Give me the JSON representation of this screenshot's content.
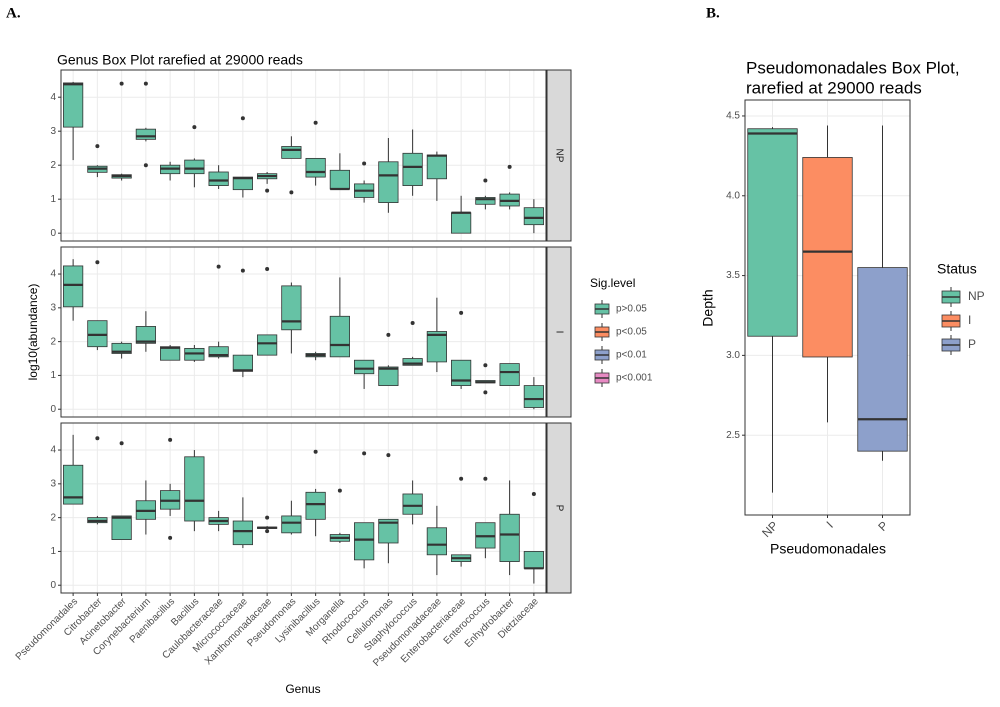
{
  "chart_data": [
    {
      "type": "box",
      "panel_label": "A.",
      "title": "Genus Box Plot rarefied at 29000 reads",
      "x_label": "Genus",
      "y_label": "log10(abundance)",
      "categories": [
        "Pseudomonadales",
        "Citrobacter",
        "Acinetobacter",
        "Corynebacterium",
        "Paenibacillus",
        "Bacillus",
        "Caulobacteraceae",
        "Micrococcaceae",
        "Xanthomonadaceae",
        "Pseudomonas",
        "Lysinibacillus",
        "Morganella",
        "Rhodococcus",
        "Cellulomonas",
        "Staphylococcus",
        "Pseudomonadaceae",
        "Enterobacteriaceae",
        "Enterococcus",
        "Enhydrobacter",
        "Dietziaceae"
      ],
      "ylim": [
        -0.23,
        4.8
      ],
      "yticks": [
        0,
        1,
        2,
        3,
        4
      ],
      "grid": true,
      "legend": {
        "title": "Sig.level",
        "items": [
          {
            "name": "p>0.05",
            "color": "#66c2a5"
          },
          {
            "name": "p<0.05",
            "color": "#fc8d62"
          },
          {
            "name": "p<0.01",
            "color": "#8da0cb"
          },
          {
            "name": "p<0.001",
            "color": "#e78ac3"
          }
        ]
      },
      "facets": [
        {
          "name": "NP",
          "boxes": [
            {
              "min": 2.15,
              "q1": 3.12,
              "median": 4.38,
              "q3": 4.42,
              "max": 4.45,
              "outliers": []
            },
            {
              "min": 1.65,
              "q1": 1.79,
              "median": 1.9,
              "q3": 1.97,
              "max": 2.0,
              "outliers": [
                2.56
              ]
            },
            {
              "min": 1.55,
              "q1": 1.62,
              "median": 1.68,
              "q3": 1.72,
              "max": 1.75,
              "outliers": [
                4.4
              ]
            },
            {
              "min": 2.7,
              "q1": 2.76,
              "median": 2.85,
              "q3": 3.06,
              "max": 3.1,
              "outliers": [
                4.4,
                2.0
              ]
            },
            {
              "min": 1.55,
              "q1": 1.75,
              "median": 1.9,
              "q3": 2.0,
              "max": 2.1,
              "outliers": []
            },
            {
              "min": 1.35,
              "q1": 1.75,
              "median": 1.9,
              "q3": 2.15,
              "max": 2.2,
              "outliers": [
                3.12
              ]
            },
            {
              "min": 1.3,
              "q1": 1.4,
              "median": 1.55,
              "q3": 1.8,
              "max": 2.0,
              "outliers": []
            },
            {
              "min": 1.05,
              "q1": 1.28,
              "median": 1.62,
              "q3": 1.65,
              "max": 1.65,
              "outliers": [
                3.38
              ]
            },
            {
              "min": 1.45,
              "q1": 1.6,
              "median": 1.68,
              "q3": 1.75,
              "max": 1.8,
              "outliers": [
                1.25
              ]
            },
            {
              "min": 2.2,
              "q1": 2.2,
              "median": 2.45,
              "q3": 2.55,
              "max": 2.85,
              "outliers": [
                1.2
              ]
            },
            {
              "min": 1.4,
              "q1": 1.65,
              "median": 1.8,
              "q3": 2.2,
              "max": 2.2,
              "outliers": [
                3.25
              ]
            },
            {
              "min": 1.3,
              "q1": 1.3,
              "median": 1.3,
              "q3": 1.85,
              "max": 2.35,
              "outliers": []
            },
            {
              "min": 0.9,
              "q1": 1.05,
              "median": 1.25,
              "q3": 1.45,
              "max": 1.55,
              "outliers": [
                2.05
              ]
            },
            {
              "min": 0.6,
              "q1": 0.9,
              "median": 1.7,
              "q3": 2.1,
              "max": 2.8,
              "outliers": []
            },
            {
              "min": 1.1,
              "q1": 1.4,
              "median": 1.95,
              "q3": 2.35,
              "max": 3.05,
              "outliers": []
            },
            {
              "min": 0.95,
              "q1": 1.6,
              "median": 2.28,
              "q3": 2.3,
              "max": 2.4,
              "outliers": []
            },
            {
              "min": 0.0,
              "q1": 0.0,
              "median": 0.6,
              "q3": 0.6,
              "max": 1.1,
              "outliers": []
            },
            {
              "min": 0.7,
              "q1": 0.85,
              "median": 1.0,
              "q3": 1.05,
              "max": 1.1,
              "outliers": [
                1.55
              ]
            },
            {
              "min": 0.7,
              "q1": 0.8,
              "median": 0.95,
              "q3": 1.15,
              "max": 1.2,
              "outliers": [
                1.95
              ]
            },
            {
              "min": 0.0,
              "q1": 0.25,
              "median": 0.45,
              "q3": 0.75,
              "max": 1.0,
              "outliers": []
            }
          ]
        },
        {
          "name": "I",
          "boxes": [
            {
              "min": 2.62,
              "q1": 3.03,
              "median": 3.68,
              "q3": 4.24,
              "max": 4.44,
              "outliers": []
            },
            {
              "min": 1.75,
              "q1": 1.85,
              "median": 2.2,
              "q3": 2.62,
              "max": 2.62,
              "outliers": [
                4.35
              ]
            },
            {
              "min": 1.5,
              "q1": 1.65,
              "median": 1.7,
              "q3": 1.95,
              "max": 2.0,
              "outliers": []
            },
            {
              "min": 1.7,
              "q1": 1.95,
              "median": 2.0,
              "q3": 2.45,
              "max": 2.9,
              "outliers": []
            },
            {
              "min": 1.45,
              "q1": 1.45,
              "median": 1.82,
              "q3": 1.85,
              "max": 1.9,
              "outliers": []
            },
            {
              "min": 1.4,
              "q1": 1.45,
              "median": 1.65,
              "q3": 1.8,
              "max": 1.9,
              "outliers": []
            },
            {
              "min": 1.5,
              "q1": 1.55,
              "median": 1.6,
              "q3": 1.85,
              "max": 2.0,
              "outliers": [
                4.22
              ]
            },
            {
              "min": 0.95,
              "q1": 1.12,
              "median": 1.15,
              "q3": 1.6,
              "max": 1.6,
              "outliers": [
                4.1
              ]
            },
            {
              "min": 1.6,
              "q1": 1.6,
              "median": 1.95,
              "q3": 2.2,
              "max": 2.2,
              "outliers": [
                4.15
              ]
            },
            {
              "min": 1.65,
              "q1": 2.35,
              "median": 2.6,
              "q3": 3.65,
              "max": 3.75,
              "outliers": []
            },
            {
              "min": 1.45,
              "q1": 1.55,
              "median": 1.6,
              "q3": 1.65,
              "max": 1.7,
              "outliers": []
            },
            {
              "min": 1.55,
              "q1": 1.55,
              "median": 1.9,
              "q3": 2.75,
              "max": 3.9,
              "outliers": []
            },
            {
              "min": 0.6,
              "q1": 1.05,
              "median": 1.2,
              "q3": 1.45,
              "max": 1.45,
              "outliers": []
            },
            {
              "min": 0.7,
              "q1": 0.7,
              "median": 1.2,
              "q3": 1.25,
              "max": 1.3,
              "outliers": [
                2.2
              ]
            },
            {
              "min": 1.3,
              "q1": 1.3,
              "median": 1.35,
              "q3": 1.5,
              "max": 1.55,
              "outliers": [
                2.55
              ]
            },
            {
              "min": 1.1,
              "q1": 1.4,
              "median": 2.2,
              "q3": 2.3,
              "max": 3.3,
              "outliers": []
            },
            {
              "min": 0.6,
              "q1": 0.7,
              "median": 0.85,
              "q3": 1.45,
              "max": 1.45,
              "outliers": [
                2.85
              ]
            },
            {
              "min": 0.78,
              "q1": 0.78,
              "median": 0.8,
              "q3": 0.85,
              "max": 0.85,
              "outliers": [
                1.3,
                0.5
              ]
            },
            {
              "min": 0.7,
              "q1": 0.7,
              "median": 1.1,
              "q3": 1.35,
              "max": 1.35,
              "outliers": []
            },
            {
              "min": 0.0,
              "q1": 0.05,
              "median": 0.3,
              "q3": 0.7,
              "max": 0.95,
              "outliers": []
            }
          ]
        },
        {
          "name": "P",
          "boxes": [
            {
              "min": 2.4,
              "q1": 2.4,
              "median": 2.6,
              "q3": 3.55,
              "max": 4.45,
              "outliers": []
            },
            {
              "min": 1.8,
              "q1": 1.85,
              "median": 1.9,
              "q3": 2.0,
              "max": 2.05,
              "outliers": [
                4.35
              ]
            },
            {
              "min": 1.35,
              "q1": 1.35,
              "median": 2.0,
              "q3": 2.05,
              "max": 2.05,
              "outliers": [
                4.2
              ]
            },
            {
              "min": 1.5,
              "q1": 1.95,
              "median": 2.2,
              "q3": 2.5,
              "max": 3.1,
              "outliers": []
            },
            {
              "min": 2.05,
              "q1": 2.25,
              "median": 2.5,
              "q3": 2.8,
              "max": 3.0,
              "outliers": [
                4.3,
                1.4
              ]
            },
            {
              "min": 1.6,
              "q1": 1.9,
              "median": 2.5,
              "q3": 3.8,
              "max": 4.0,
              "outliers": []
            },
            {
              "min": 1.6,
              "q1": 1.8,
              "median": 1.9,
              "q3": 2.0,
              "max": 2.2,
              "outliers": []
            },
            {
              "min": 1.1,
              "q1": 1.2,
              "median": 1.6,
              "q3": 1.9,
              "max": 2.6,
              "outliers": []
            },
            {
              "min": 1.65,
              "q1": 1.68,
              "median": 1.7,
              "q3": 1.72,
              "max": 1.75,
              "outliers": [
                2.0,
                1.6
              ]
            },
            {
              "min": 1.5,
              "q1": 1.55,
              "median": 1.85,
              "q3": 2.05,
              "max": 2.5,
              "outliers": []
            },
            {
              "min": 1.45,
              "q1": 1.95,
              "median": 2.4,
              "q3": 2.75,
              "max": 2.85,
              "outliers": [
                3.95
              ]
            },
            {
              "min": 1.25,
              "q1": 1.3,
              "median": 1.4,
              "q3": 1.5,
              "max": 1.55,
              "outliers": [
                2.8
              ]
            },
            {
              "min": 0.5,
              "q1": 0.75,
              "median": 1.35,
              "q3": 1.85,
              "max": 1.85,
              "outliers": [
                3.9
              ]
            },
            {
              "min": 0.65,
              "q1": 1.25,
              "median": 1.85,
              "q3": 1.95,
              "max": 1.95,
              "outliers": [
                3.85
              ]
            },
            {
              "min": 1.8,
              "q1": 2.1,
              "median": 2.35,
              "q3": 2.7,
              "max": 3.1,
              "outliers": []
            },
            {
              "min": 0.3,
              "q1": 0.9,
              "median": 1.2,
              "q3": 1.7,
              "max": 2.35,
              "outliers": []
            },
            {
              "min": 0.55,
              "q1": 0.7,
              "median": 0.8,
              "q3": 0.9,
              "max": 0.9,
              "outliers": [
                3.15
              ]
            },
            {
              "min": 0.8,
              "q1": 1.1,
              "median": 1.45,
              "q3": 1.85,
              "max": 1.85,
              "outliers": [
                3.15
              ]
            },
            {
              "min": 0.3,
              "q1": 0.7,
              "median": 1.5,
              "q3": 2.1,
              "max": 3.1,
              "outliers": []
            },
            {
              "min": 0.05,
              "q1": 0.5,
              "median": 0.5,
              "q3": 1.0,
              "max": 1.0,
              "outliers": [
                2.7
              ]
            }
          ]
        }
      ]
    },
    {
      "type": "box",
      "panel_label": "B.",
      "title_lines": [
        "Pseudomonadales Box Plot,",
        "rarefied at 29000 reads"
      ],
      "x_label": "Pseudomonadales",
      "y_label": "Depth",
      "categories": [
        "NP",
        "I",
        "P"
      ],
      "colors": [
        "#66c2a5",
        "#fc8d62",
        "#8da0cb"
      ],
      "ylim": [
        2.0,
        4.6
      ],
      "yticks": [
        2.5,
        {
          "value": 3,
          "label": "3.0"
        },
        3.5,
        {
          "value": 4,
          "label": "4.0"
        },
        4.5
      ],
      "grid": true,
      "legend": {
        "title": "Status"
      },
      "boxes": [
        {
          "min": 2.14,
          "q1": 3.12,
          "median": 4.39,
          "q3": 4.42,
          "max": 4.43,
          "outliers": []
        },
        {
          "min": 2.58,
          "q1": 2.99,
          "median": 3.65,
          "q3": 4.24,
          "max": 4.44,
          "outliers": []
        },
        {
          "min": 2.34,
          "q1": 2.4,
          "median": 2.6,
          "q3": 3.55,
          "max": 4.44,
          "outliers": []
        }
      ]
    }
  ]
}
